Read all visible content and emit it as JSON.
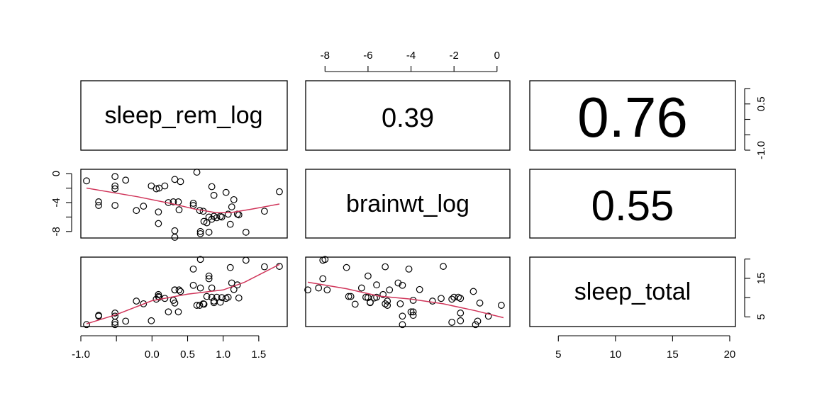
{
  "chart_data": {
    "type": "scatter",
    "variables": [
      "sleep_rem_log",
      "brainwt_log",
      "sleep_total"
    ],
    "correlations": [
      {
        "row": "sleep_rem_log",
        "col": "brainwt_log",
        "value": "0.39",
        "magnitude": 0.39
      },
      {
        "row": "sleep_rem_log",
        "col": "sleep_total",
        "value": "0.76",
        "magnitude": 0.76
      },
      {
        "row": "brainwt_log",
        "col": "sleep_total",
        "value": "0.55",
        "magnitude": 0.55
      }
    ],
    "axes": {
      "sleep_rem_log": {
        "range": [
          -1.0,
          1.9
        ],
        "ticks": [
          "-1.0",
          "-0.5",
          "0.0",
          "0.5",
          "1.0",
          "1.5"
        ]
      },
      "brainwt_log": {
        "range": [
          -8.9,
          0.6
        ],
        "ticks": [
          "-8",
          "-6",
          "-4",
          "-2",
          "0"
        ],
        "left_ticks": [
          "-8",
          "-4",
          "0"
        ]
      },
      "sleep_total": {
        "range": [
          2.5,
          20.5
        ],
        "ticks": [
          "5",
          "10",
          "15",
          "20"
        ],
        "right_ticks": [
          "5",
          "15"
        ]
      },
      "corr_scale": {
        "ticks": [
          "-1.0",
          "0.5"
        ]
      }
    },
    "points": [
      {
        "rem": -0.92,
        "brain": -1.0,
        "total": 3.0
      },
      {
        "rem": -0.75,
        "brain": -3.9,
        "total": 5.4
      },
      {
        "rem": -0.75,
        "brain": -4.4,
        "total": 5.2
      },
      {
        "rem": -0.52,
        "brain": -0.4,
        "total": 5.2
      },
      {
        "rem": -0.52,
        "brain": -1.7,
        "total": 6.0
      },
      {
        "rem": -0.52,
        "brain": -2.1,
        "total": 3.6
      },
      {
        "rem": -0.52,
        "brain": -4.4,
        "total": 3.0
      },
      {
        "rem": -0.37,
        "brain": -0.9,
        "total": 3.9
      },
      {
        "rem": -0.22,
        "brain": -5.1,
        "total": 9.1
      },
      {
        "rem": -0.12,
        "brain": -4.5,
        "total": 8.4
      },
      {
        "rem": -0.01,
        "brain": -1.7,
        "total": 4.0
      },
      {
        "rem": 0.06,
        "brain": -2.1,
        "total": 9.6
      },
      {
        "rem": 0.09,
        "brain": -5.3,
        "total": 10.8
      },
      {
        "rem": 0.09,
        "brain": -6.9,
        "total": 10.3
      },
      {
        "rem": 0.1,
        "brain": -2.0,
        "total": 10.1
      },
      {
        "rem": 0.18,
        "brain": -1.7,
        "total": 9.8
      },
      {
        "rem": 0.23,
        "brain": -4.0,
        "total": 6.3
      },
      {
        "rem": 0.3,
        "brain": -3.9,
        "total": 9.3
      },
      {
        "rem": 0.32,
        "brain": -0.8,
        "total": 8.6
      },
      {
        "rem": 0.32,
        "brain": -7.9,
        "total": 12.0
      },
      {
        "rem": 0.32,
        "brain": -8.8,
        "total": 12.0
      },
      {
        "rem": 0.37,
        "brain": -3.9,
        "total": 6.3
      },
      {
        "rem": 0.38,
        "brain": -5.0,
        "total": 12.0
      },
      {
        "rem": 0.4,
        "brain": -1.1,
        "total": 11.6
      },
      {
        "rem": 0.58,
        "brain": -4.1,
        "total": 17.4
      },
      {
        "rem": 0.58,
        "brain": -4.4,
        "total": 13.2
      },
      {
        "rem": 0.63,
        "brain": 0.2,
        "total": 8.0
      },
      {
        "rem": 0.67,
        "brain": -5.1,
        "total": 8.0
      },
      {
        "rem": 0.68,
        "brain": -8.0,
        "total": 19.9
      },
      {
        "rem": 0.68,
        "brain": -8.3,
        "total": 12.5
      },
      {
        "rem": 0.72,
        "brain": -5.2,
        "total": 8.4
      },
      {
        "rem": 0.73,
        "brain": -6.6,
        "total": 8.3
      },
      {
        "rem": 0.77,
        "brain": -6.8,
        "total": 10.3
      },
      {
        "rem": 0.8,
        "brain": -6.0,
        "total": 15.6
      },
      {
        "rem": 0.8,
        "brain": -8.1,
        "total": 14.9
      },
      {
        "rem": 0.84,
        "brain": -6.3,
        "total": 12.5
      },
      {
        "rem": 0.84,
        "brain": -1.8,
        "total": 10.1
      },
      {
        "rem": 0.87,
        "brain": -3.0,
        "total": 9.1
      },
      {
        "rem": 0.87,
        "brain": -5.9,
        "total": 8.7
      },
      {
        "rem": 0.91,
        "brain": -6.1,
        "total": 10.1
      },
      {
        "rem": 0.96,
        "brain": -5.9,
        "total": 8.8
      },
      {
        "rem": 0.98,
        "brain": -6.0,
        "total": 10.0
      },
      {
        "rem": 1.04,
        "brain": -2.6,
        "total": 9.8
      },
      {
        "rem": 1.07,
        "brain": -5.6,
        "total": 10.1
      },
      {
        "rem": 1.1,
        "brain": -7.0,
        "total": 17.8
      },
      {
        "rem": 1.12,
        "brain": -4.6,
        "total": 13.8
      },
      {
        "rem": 1.15,
        "brain": -3.6,
        "total": 12.1
      },
      {
        "rem": 1.2,
        "brain": -5.6,
        "total": 13.3
      },
      {
        "rem": 1.22,
        "brain": -5.7,
        "total": 9.9
      },
      {
        "rem": 1.32,
        "brain": -8.1,
        "total": 19.7
      },
      {
        "rem": 1.58,
        "brain": -5.2,
        "total": 18.0
      },
      {
        "rem": 1.79,
        "brain": -2.5,
        "total": 18.1
      }
    ],
    "smoothers": {
      "rem_brain": [
        [
          -0.92,
          -2.0
        ],
        [
          -0.2,
          -3.2
        ],
        [
          0.3,
          -4.2
        ],
        [
          0.6,
          -4.9
        ],
        [
          0.9,
          -5.4
        ],
        [
          1.1,
          -5.4
        ],
        [
          1.4,
          -4.9
        ],
        [
          1.79,
          -4.2
        ]
      ],
      "rem_total": [
        [
          -0.92,
          3.2
        ],
        [
          -0.5,
          5.6
        ],
        [
          0.0,
          9.2
        ],
        [
          0.5,
          10.9
        ],
        [
          1.0,
          12.0
        ],
        [
          1.3,
          14.0
        ],
        [
          1.79,
          18.6
        ]
      ],
      "brain_total": [
        [
          -8.8,
          14.0
        ],
        [
          -7.0,
          12.3
        ],
        [
          -5.5,
          10.4
        ],
        [
          -4.0,
          9.6
        ],
        [
          -2.5,
          8.4
        ],
        [
          -1.0,
          6.6
        ],
        [
          0.3,
          4.8
        ]
      ]
    }
  }
}
